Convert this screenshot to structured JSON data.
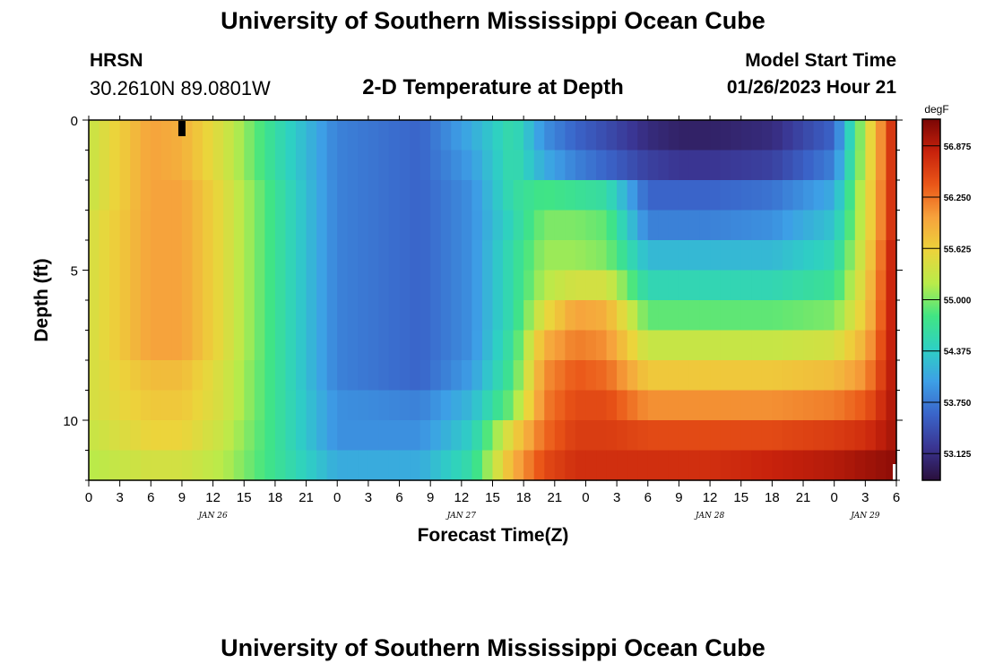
{
  "header": {
    "title": "University of Southern Mississippi Ocean Cube",
    "station": "HRSN",
    "coords": "30.2610N  89.0801W",
    "subtitle": "2-D Temperature at Depth",
    "model_start_label": "Model Start Time",
    "model_start_value": "01/26/2023 Hour 21"
  },
  "footer": {
    "title": "University of Southern Mississippi Ocean Cube"
  },
  "colors": {
    "colormap": [
      "#2a0f3c",
      "#3a3592",
      "#3a64c9",
      "#3d9fe6",
      "#2ed0c3",
      "#41e583",
      "#b9eb4a",
      "#ecd43b",
      "#f6a33c",
      "#ea5718",
      "#c8220c",
      "#7a0605"
    ]
  },
  "chart_data": {
    "type": "heatmap",
    "xlabel": "Forecast Time(Z)",
    "ylabel": "Depth (ft)",
    "colorbar_label": "degF",
    "x_range_hours": [
      0,
      78
    ],
    "ylim": [
      0,
      12
    ],
    "y_ticks": [
      0,
      5,
      10
    ],
    "y_tick_labels": [
      "0",
      "5",
      "10"
    ],
    "x_tick_labels": [
      "0",
      "3",
      "6",
      "9",
      "12",
      "15",
      "18",
      "21",
      "0",
      "3",
      "6",
      "9",
      "12",
      "15",
      "18",
      "21",
      "0",
      "3",
      "6",
      "9",
      "12",
      "15",
      "18",
      "21",
      "0",
      "3",
      "6"
    ],
    "date_labels": [
      {
        "label": "JAN 26",
        "hour": 12
      },
      {
        "label": "JAN 27",
        "hour": 36
      },
      {
        "label": "JAN 28",
        "hour": 60
      },
      {
        "label": "JAN 29",
        "hour": 75
      }
    ],
    "colorbar_range": [
      52.8,
      57.2
    ],
    "colorbar_ticks": [
      "56.875",
      "56.250",
      "55.625",
      "55.000",
      "54.375",
      "53.750",
      "53.125"
    ],
    "time_hours": [
      0,
      6,
      9,
      13,
      18,
      24,
      32,
      37,
      41,
      44,
      47,
      50,
      54,
      57,
      60,
      66,
      72,
      75,
      78
    ],
    "depth_ft": [
      0,
      1,
      2,
      3,
      4,
      5,
      6,
      7,
      8,
      9,
      10,
      11,
      12
    ],
    "temperature_degF": [
      [
        55.3,
        56.0,
        55.9,
        55.4,
        54.6,
        53.8,
        53.6,
        54.1,
        54.6,
        53.9,
        53.6,
        53.4,
        53.1,
        53.0,
        53.0,
        53.1,
        53.6,
        55.3,
        56.9
      ],
      [
        55.3,
        56.0,
        55.9,
        55.4,
        54.6,
        53.8,
        53.6,
        54.0,
        54.6,
        54.1,
        53.8,
        53.6,
        53.3,
        53.2,
        53.2,
        53.3,
        53.8,
        55.3,
        56.9
      ],
      [
        55.3,
        56.0,
        56.0,
        55.5,
        54.7,
        53.8,
        53.6,
        53.9,
        54.6,
        54.8,
        54.7,
        54.6,
        53.6,
        53.6,
        53.6,
        53.7,
        54.1,
        55.4,
        56.9
      ],
      [
        55.4,
        56.0,
        56.0,
        55.5,
        54.7,
        53.8,
        53.6,
        53.9,
        54.5,
        55.0,
        55.0,
        54.9,
        53.8,
        53.8,
        53.8,
        53.9,
        54.3,
        55.4,
        56.9
      ],
      [
        55.4,
        56.0,
        56.0,
        55.5,
        54.7,
        53.8,
        53.6,
        53.9,
        54.6,
        55.1,
        55.1,
        55.0,
        54.2,
        54.2,
        54.2,
        54.2,
        54.5,
        55.5,
        57.0
      ],
      [
        55.4,
        56.0,
        56.0,
        55.5,
        54.7,
        53.8,
        53.6,
        53.9,
        54.6,
        55.2,
        55.4,
        55.4,
        54.5,
        54.5,
        54.5,
        54.5,
        54.7,
        55.6,
        57.0
      ],
      [
        55.4,
        56.0,
        56.0,
        55.5,
        54.7,
        53.8,
        53.6,
        53.9,
        54.6,
        55.5,
        56.0,
        55.9,
        54.9,
        54.9,
        54.9,
        54.9,
        55.0,
        55.7,
        57.0
      ],
      [
        55.4,
        56.0,
        56.0,
        55.5,
        54.7,
        53.8,
        53.6,
        53.9,
        54.7,
        55.9,
        56.2,
        56.1,
        55.3,
        55.3,
        55.3,
        55.3,
        55.4,
        55.9,
        57.0
      ],
      [
        55.4,
        55.8,
        55.8,
        55.4,
        54.7,
        53.8,
        53.6,
        54.0,
        54.8,
        56.1,
        56.4,
        56.3,
        55.7,
        55.7,
        55.7,
        55.7,
        55.8,
        56.1,
        57.0
      ],
      [
        55.4,
        55.7,
        55.7,
        55.4,
        54.7,
        53.9,
        53.8,
        54.2,
        55.0,
        56.2,
        56.5,
        56.5,
        56.1,
        56.1,
        56.1,
        56.1,
        56.2,
        56.4,
        57.0
      ],
      [
        55.3,
        55.6,
        55.6,
        55.3,
        54.7,
        53.9,
        53.9,
        54.4,
        55.6,
        56.3,
        56.6,
        56.6,
        56.5,
        56.5,
        56.5,
        56.5,
        56.6,
        56.7,
        57.0
      ],
      [
        55.2,
        55.4,
        55.4,
        55.2,
        54.7,
        54.1,
        54.1,
        54.6,
        55.9,
        56.5,
        56.7,
        56.7,
        56.7,
        56.7,
        56.7,
        56.8,
        56.9,
        57.0,
        57.1
      ],
      [
        55.1,
        55.3,
        55.3,
        55.1,
        54.7,
        54.3,
        54.3,
        54.8,
        56.2,
        56.7,
        56.8,
        56.8,
        56.8,
        56.8,
        56.9,
        57.0,
        57.1,
        57.1,
        57.2
      ]
    ]
  }
}
